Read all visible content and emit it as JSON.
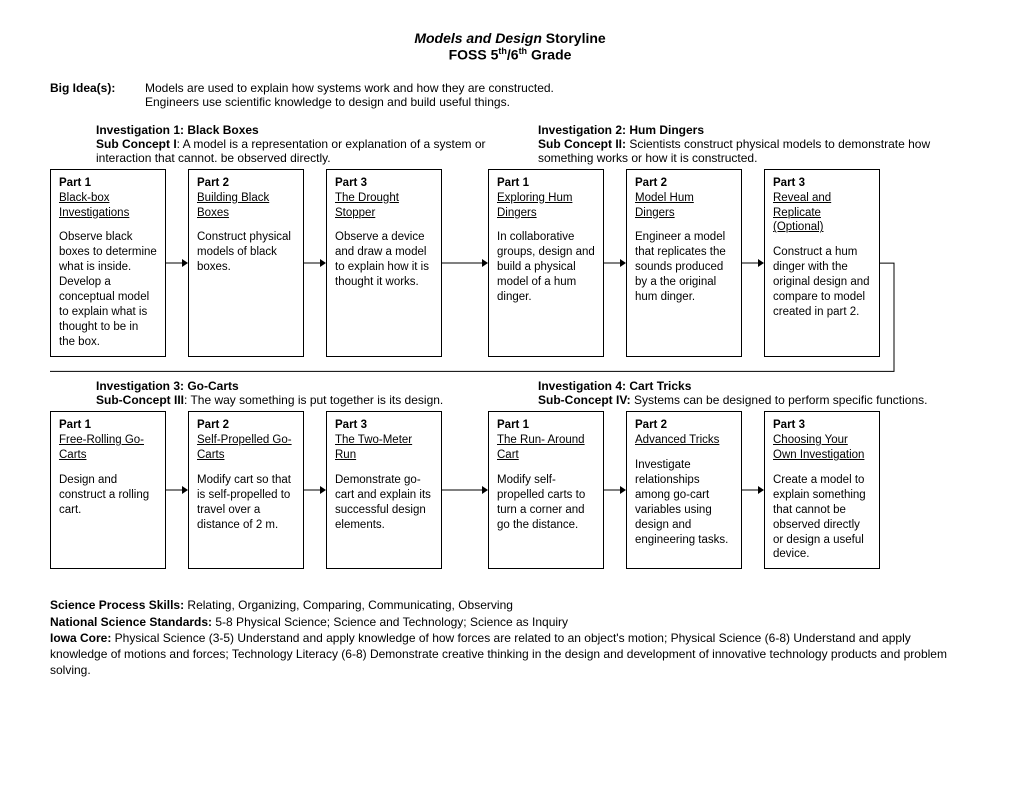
{
  "title": {
    "main_italic": "Models and Design",
    "main_rest": " Storyline",
    "sub": "FOSS 5",
    "sub_sup1": "th",
    "sub_mid": "/6",
    "sub_sup2": "th",
    "sub_end": " Grade"
  },
  "bigidea": {
    "label": "Big Idea(s):",
    "line1": "Models are used to explain how systems work and how they are constructed.",
    "line2": "Engineers use scientific knowledge to design and build useful things."
  },
  "row1": {
    "left": {
      "inv_title": "Investigation 1: Black Boxes",
      "sub_label": "Sub Concept I",
      "sub_text": ": A model is a representation or explanation of a system or interaction that cannot. be observed directly.",
      "parts": [
        {
          "num": "Part 1",
          "title": "Black-box Investigations",
          "body": "Observe black boxes to determine what is inside. Develop a conceptual model to explain what is thought to be in the box."
        },
        {
          "num": "Part 2",
          "title": "Building Black Boxes",
          "body": "Construct physical models of black boxes."
        },
        {
          "num": "Part 3",
          "title": "The Drought Stopper",
          "body": "Observe a device and draw a model to explain how it is thought it works."
        }
      ]
    },
    "right": {
      "inv_title": "Investigation 2: Hum Dingers",
      "sub_label": "Sub Concept II:",
      "sub_text": " Scientists construct physical models to demonstrate how something works or how it is constructed.",
      "parts": [
        {
          "num": "Part 1",
          "title": "Exploring Hum Dingers",
          "body": "In collaborative groups, design and build a physical model of a hum dinger."
        },
        {
          "num": "Part 2",
          "title": "Model Hum Dingers",
          "body": "Engineer a model that replicates the sounds produced by a the original hum dinger."
        },
        {
          "num": "Part 3",
          "title": "Reveal and Replicate (Optional)",
          "body": "Construct a hum dinger with the original design and compare to model created in part 2."
        }
      ]
    }
  },
  "row2": {
    "left": {
      "inv_title": "Investigation 3: Go-Carts",
      "sub_label": "Sub-Concept III",
      "sub_text": ": The way something is put together is its design.",
      "parts": [
        {
          "num": "Part 1",
          "title": "Free-Rolling Go-Carts",
          "body": "Design and construct a rolling cart."
        },
        {
          "num": "Part 2",
          "title": "Self-Propelled Go-Carts",
          "body": "Modify cart so that is self-propelled to travel over a distance of 2 m."
        },
        {
          "num": "Part 3",
          "title": "The Two-Meter Run",
          "body": "Demonstrate go-cart and explain its successful design elements."
        }
      ]
    },
    "right": {
      "inv_title": "Investigation 4: Cart Tricks",
      "sub_label": "Sub-Concept IV:",
      "sub_text": " Systems can be designed to perform specific functions.",
      "parts": [
        {
          "num": "Part 1",
          "title": "The Run- Around Cart",
          "body": "Modify self-propelled carts to turn a corner and go the distance."
        },
        {
          "num": "Part 2",
          "title": "Advanced Tricks",
          "body": "Investigate relationships among go-cart variables using design and engineering tasks."
        },
        {
          "num": "Part 3",
          "title": "Choosing Your Own Investigation",
          "body": "Create a model to explain something that cannot be observed directly or design a useful device."
        }
      ]
    }
  },
  "footer": {
    "sps_label": "Science Process Skills:",
    "sps_text": " Relating, Organizing, Comparing, Communicating, Observing",
    "nss_label": "National Science Standards:",
    "nss_text": " 5-8 Physical Science; Science and Technology; Science as Inquiry",
    "iowa_label": "Iowa Core:",
    "iowa_text": " Physical Science (3-5) Understand and apply knowledge of how forces are related to an object's motion; Physical Science (6-8) Understand and apply knowledge of motions and forces; Technology Literacy (6-8) Demonstrate creative thinking in the design and development of innovative technology products and problem solving."
  },
  "colors": {
    "border": "#000000",
    "text": "#000000",
    "bg": "#ffffff"
  }
}
